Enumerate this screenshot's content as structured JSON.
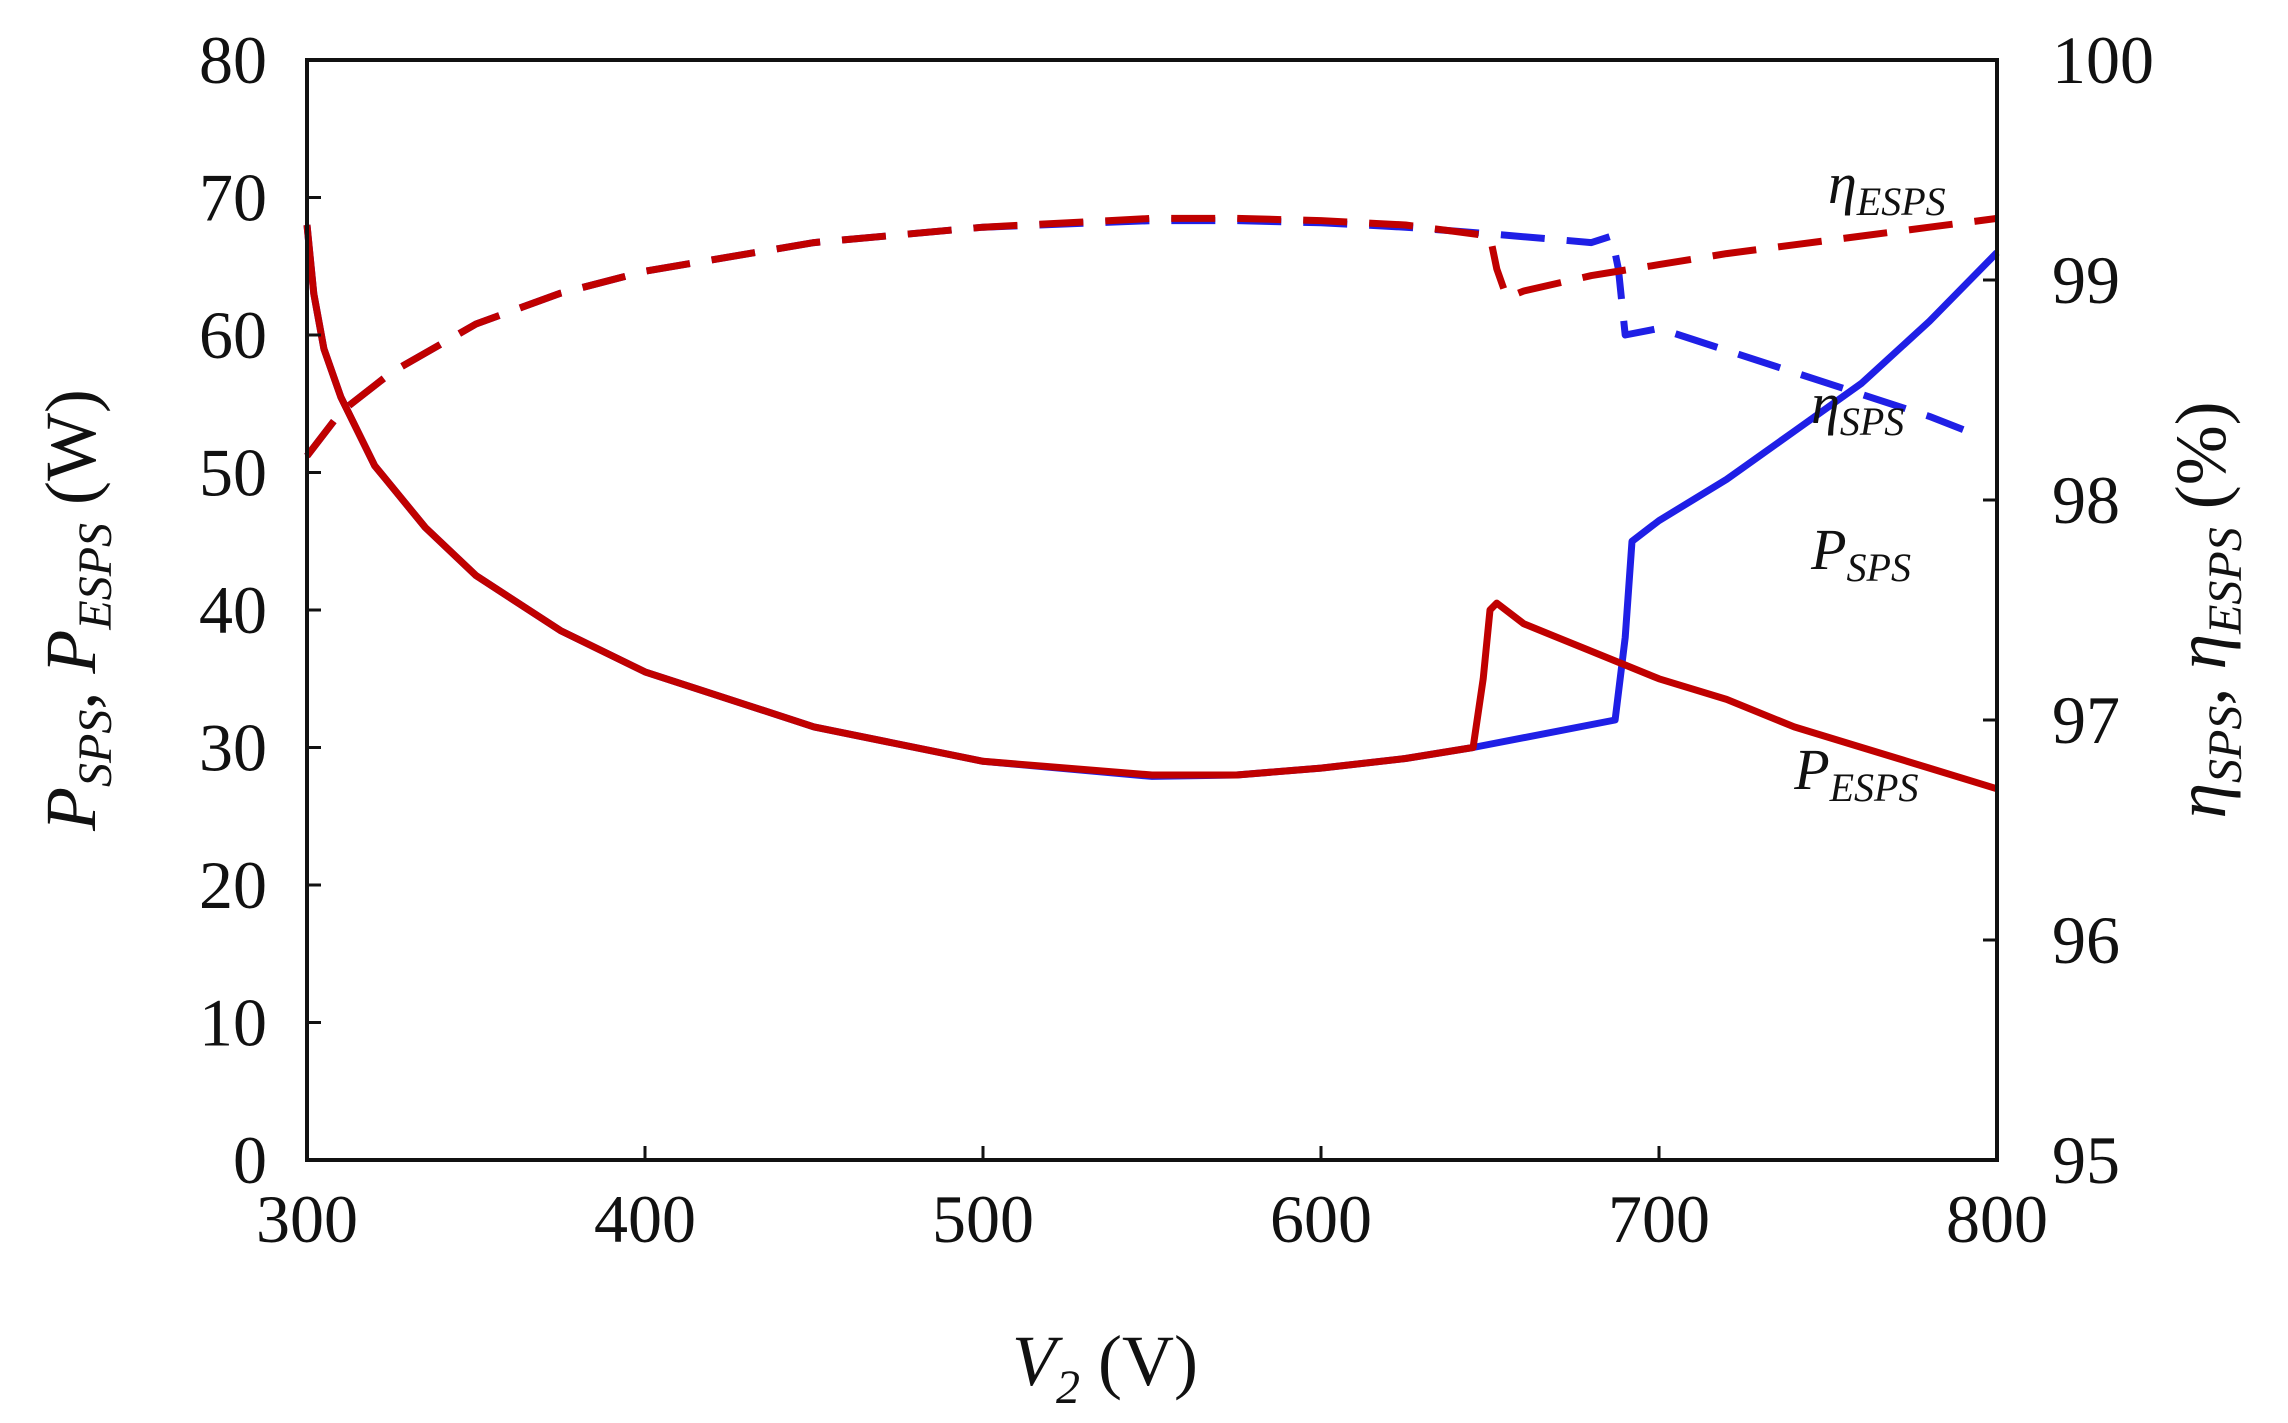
{
  "chart_data": {
    "type": "line",
    "xlabel": {
      "main": "V",
      "sub": "2",
      "unit": " (V)"
    },
    "ylabel_left": {
      "p1": "P",
      "s1": "SPS",
      "sep": ", ",
      "p2": "P",
      "s2": "ESPS",
      "unit": " (W)"
    },
    "ylabel_right": {
      "p1": "η",
      "s1": "SPS",
      "sep": ", ",
      "p2": "η",
      "s2": "ESPS",
      "unit": " (%)"
    },
    "xlim": [
      300,
      800
    ],
    "ylim_left": [
      0,
      80
    ],
    "ylim_right": [
      95,
      100
    ],
    "x_ticks": [
      "300",
      "400",
      "500",
      "600",
      "700",
      "800"
    ],
    "y_ticks_left": [
      "0",
      "10",
      "20",
      "30",
      "40",
      "50",
      "60",
      "70",
      "80"
    ],
    "y_ticks_right": [
      "95",
      "96",
      "97",
      "98",
      "99",
      "100"
    ],
    "grid": false,
    "colors": {
      "sps": "#1f1fe6",
      "esps": "#c00000",
      "axis": "#111111"
    },
    "series": [
      {
        "id": "P_SPS",
        "axis": "left",
        "style": "solid",
        "color": "#1f1fe6",
        "x": [
          300,
          302,
          305,
          310,
          320,
          335,
          350,
          375,
          400,
          450,
          500,
          550,
          575,
          600,
          625,
          645,
          687,
          690,
          692,
          700,
          720,
          740,
          760,
          780,
          800
        ],
        "y": [
          68,
          63,
          59,
          55.5,
          50.5,
          46,
          42.5,
          38.5,
          35.5,
          31.5,
          29,
          27.9,
          28,
          28.5,
          29.2,
          30,
          32,
          38,
          45,
          46.5,
          49.5,
          53,
          56.5,
          61,
          66
        ]
      },
      {
        "id": "P_ESPS",
        "axis": "left",
        "style": "solid",
        "color": "#c00000",
        "x": [
          300,
          302,
          305,
          310,
          320,
          335,
          350,
          375,
          400,
          450,
          500,
          550,
          575,
          600,
          625,
          645,
          648,
          650,
          652,
          660,
          680,
          700,
          720,
          740,
          760,
          780,
          800
        ],
        "y": [
          68,
          63,
          59,
          55.5,
          50.5,
          46,
          42.5,
          38.5,
          35.5,
          31.5,
          29,
          28,
          28,
          28.5,
          29.2,
          30,
          35,
          40,
          40.5,
          39,
          37,
          35,
          33.5,
          31.5,
          30,
          28.5,
          27
        ]
      },
      {
        "id": "eta_SPS",
        "axis": "right",
        "style": "dashed",
        "color": "#1f1fe6",
        "x": [
          300,
          310,
          325,
          350,
          375,
          400,
          450,
          500,
          550,
          575,
          600,
          625,
          650,
          680,
          686,
          688,
          690,
          700,
          720,
          740,
          760,
          780,
          790
        ],
        "y": [
          98.2,
          98.4,
          98.58,
          98.8,
          98.94,
          99.04,
          99.17,
          99.24,
          99.27,
          99.27,
          99.26,
          99.24,
          99.21,
          99.17,
          99.2,
          99.05,
          98.75,
          98.78,
          98.68,
          98.58,
          98.48,
          98.38,
          98.32
        ]
      },
      {
        "id": "eta_ESPS",
        "axis": "right",
        "style": "dashed",
        "color": "#c00000",
        "x": [
          300,
          310,
          325,
          350,
          375,
          400,
          450,
          500,
          550,
          575,
          600,
          625,
          650,
          652,
          655,
          660,
          680,
          700,
          720,
          740,
          760,
          780,
          800
        ],
        "y": [
          98.2,
          98.4,
          98.58,
          98.8,
          98.94,
          99.04,
          99.17,
          99.24,
          99.28,
          99.28,
          99.27,
          99.25,
          99.2,
          99.05,
          98.92,
          98.95,
          99.02,
          99.07,
          99.12,
          99.16,
          99.2,
          99.24,
          99.28
        ]
      }
    ],
    "annotations": [
      {
        "id": "eta-esps-label",
        "base": "η",
        "sub": "ESPS",
        "x": 750,
        "y_right": 99.35
      },
      {
        "id": "eta-sps-label",
        "base": "η",
        "sub": "SPS",
        "x": 745,
        "y_right": 98.35
      },
      {
        "id": "p-sps-label",
        "base": "P",
        "sub": "SPS",
        "x": 745,
        "y_left": 43
      },
      {
        "id": "p-esps-label",
        "base": "P",
        "sub": "ESPS",
        "x": 740,
        "y_left": 27
      }
    ]
  }
}
